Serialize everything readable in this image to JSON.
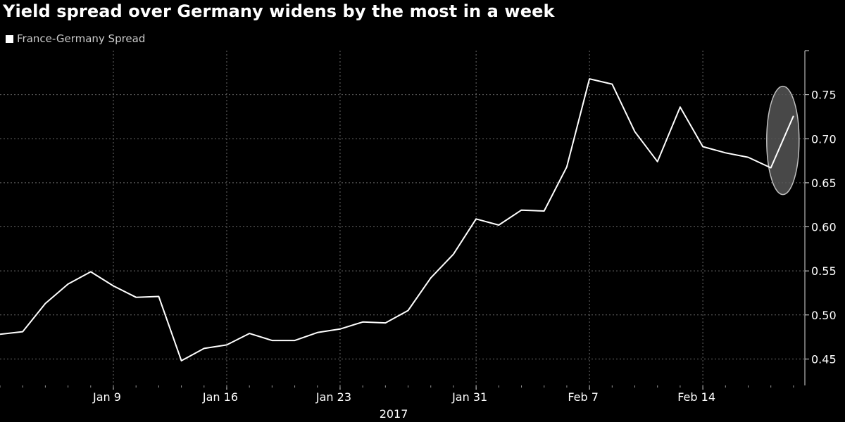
{
  "chart_data": {
    "type": "line",
    "title": "Yield spread over Germany widens by the most in a week",
    "legend": {
      "position": "top-left"
    },
    "grid": true,
    "x_axis": {
      "ticks": [
        {
          "label": "Jan 9",
          "index": 5
        },
        {
          "label": "Jan 16",
          "index": 10
        },
        {
          "label": "Jan 23",
          "index": 15
        },
        {
          "label": "Jan 31",
          "index": 21
        },
        {
          "label": "Feb 7",
          "index": 26
        },
        {
          "label": "Feb 14",
          "index": 31
        }
      ],
      "year_label": "2017"
    },
    "y_axis": {
      "ticks": [
        0.45,
        0.5,
        0.55,
        0.6,
        0.65,
        0.7,
        0.75
      ],
      "tick_labels": [
        "0.45",
        "0.50",
        "0.55",
        "0.60",
        "0.65",
        "0.70",
        "0.75"
      ],
      "ylim": [
        0.42,
        0.8
      ]
    },
    "x_index_range": [
      0,
      35.5
    ],
    "series": [
      {
        "name": "France-Germany Spread",
        "color": "#ffffff",
        "values": [
          0.478,
          0.481,
          0.513,
          0.535,
          0.549,
          0.533,
          0.52,
          0.521,
          0.448,
          0.462,
          0.466,
          0.479,
          0.471,
          0.471,
          0.48,
          0.484,
          0.492,
          0.491,
          0.505,
          0.542,
          0.569,
          0.609,
          0.602,
          0.619,
          0.618,
          0.668,
          0.768,
          0.762,
          0.708,
          0.674,
          0.736,
          0.691,
          0.684,
          0.679,
          0.667,
          0.726
        ]
      }
    ],
    "annotation": {
      "type": "ellipse-highlight",
      "from_index": 34,
      "to_index": 35,
      "color": "#bfbfbf"
    }
  }
}
